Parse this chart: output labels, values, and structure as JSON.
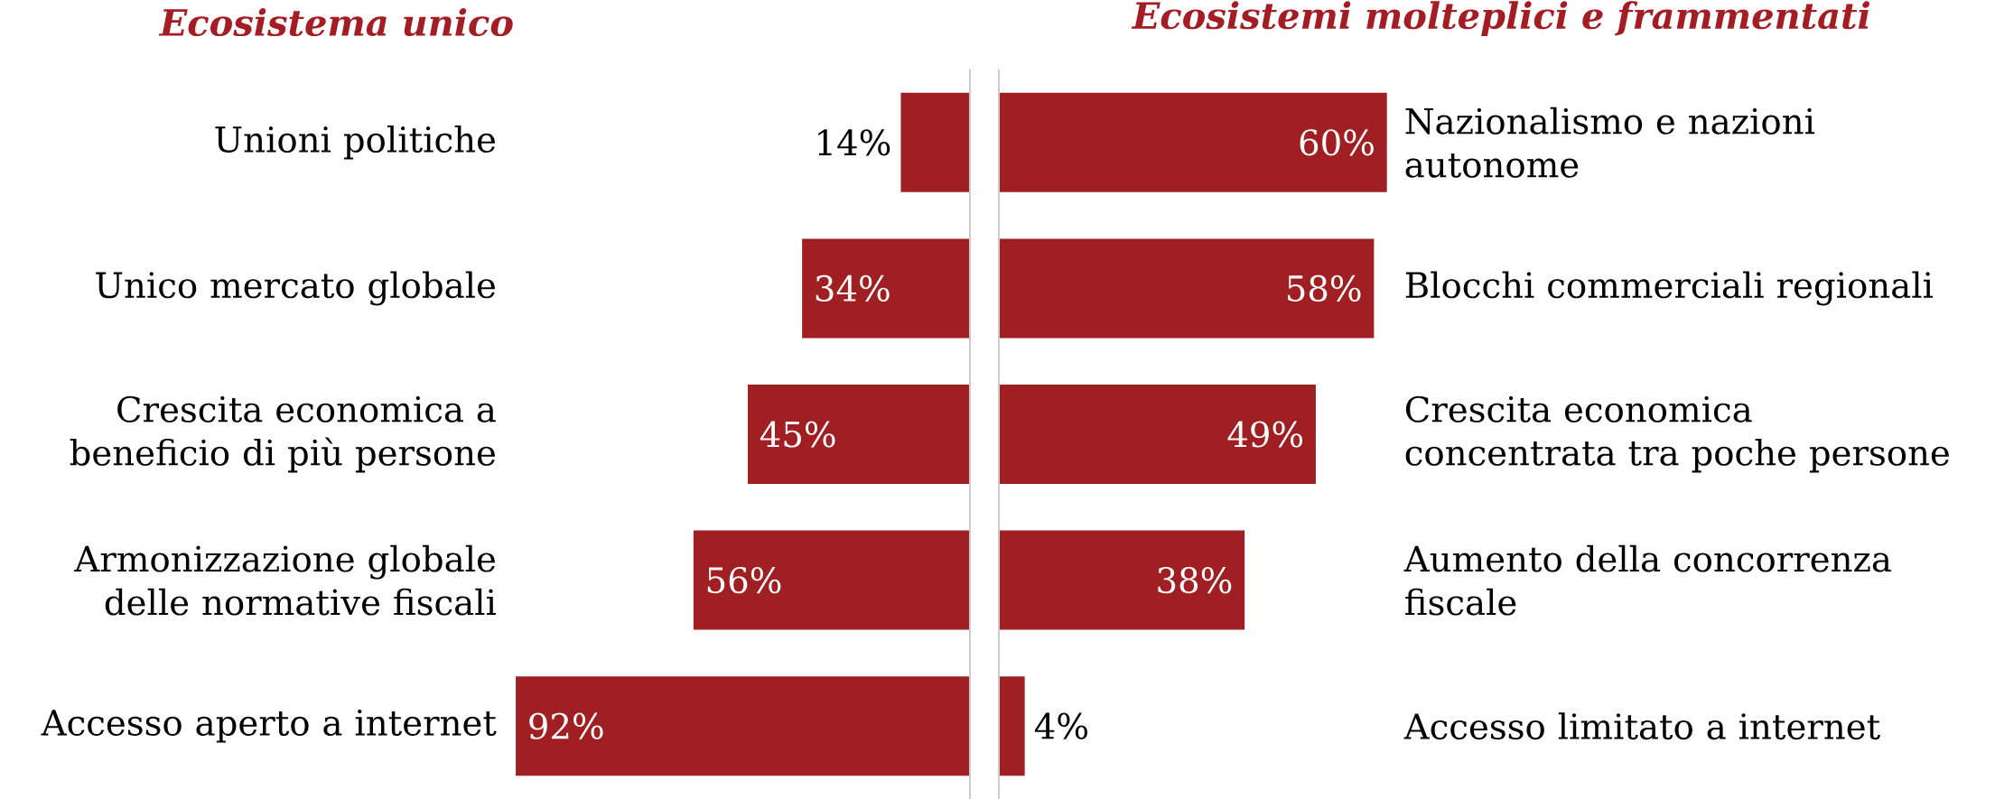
{
  "chart_data": [
    {
      "type": "bar",
      "orientation": "horizontal",
      "title": "Ecosistema unico",
      "categories": [
        "Unioni politiche",
        "Unico mercato globale",
        "Crescita economica a beneficio di più persone",
        "Armonizzazione globale delle normative fiscali",
        "Accesso aperto a internet"
      ],
      "values": [
        14,
        34,
        45,
        56,
        92
      ],
      "value_labels": [
        "14%",
        "34%",
        "45%",
        "56%",
        "92%"
      ],
      "color": "#a01f22",
      "tick_labels": "y"
    },
    {
      "type": "bar",
      "orientation": "horizontal",
      "title": "Ecosistemi molteplici e frammentati",
      "categories": [
        "Nazionalismo e nazioni autonome",
        "Blocchi commerciali regionali",
        "Crescita economica concentrata tra poche persone",
        "Aumento della concorrenza fiscale",
        "Accesso limitato a internet"
      ],
      "values": [
        60,
        58,
        49,
        38,
        4
      ],
      "value_labels": [
        "60%",
        "58%",
        "49%",
        "38%",
        "4%"
      ],
      "color": "#a01f22",
      "tick_labels": "y"
    }
  ]
}
